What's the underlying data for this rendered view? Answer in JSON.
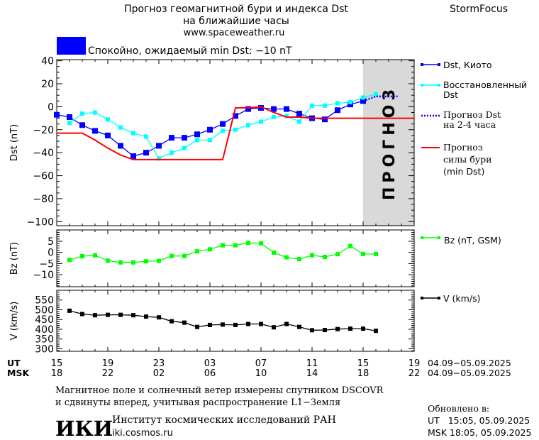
{
  "header": {
    "title_line1": "Прогноз геомагнитной бури и индекса Dst",
    "title_line2": "на ближайшие часы",
    "url": "www.spaceweather.ru",
    "brand": "StormFocus",
    "status_text": "Спокойно, ожидаемый min Dst: −10 nT",
    "status_color": "#0000ff"
  },
  "forecast_watermark": "ПРОГНОЗ",
  "legend": {
    "dst_kyoto": "Dst, Киото",
    "restored_1": "Восстановленный",
    "restored_2": "Dst",
    "forecast_1": "Прогноз Dst",
    "forecast_2": "на 2-4 часа",
    "storm_1": "Прогноз",
    "storm_2": "силы бури",
    "storm_3": "(min Dst)",
    "bz": "Bz (nT, GSM)",
    "v": "V (km/s)"
  },
  "time_axis": {
    "ut_label": "UT",
    "msk_label": "MSK",
    "ut_ticks": [
      "15",
      "19",
      "23",
      "03",
      "07",
      "11",
      "15",
      "19"
    ],
    "msk_ticks": [
      "18",
      "22",
      "02",
      "06",
      "10",
      "14",
      "18",
      "22"
    ],
    "ut_range": "04.09−05.09.2025",
    "msk_range": "04.09−05.09.2025"
  },
  "footer": {
    "note_line1": "Магнитное поле и солнечный ветер измерены спутником DSCOVR",
    "note_line2": "и сдвинуты вперед, учитывая распространение L1−Земля",
    "updated_label": "Обновлено в:",
    "updated_ut": "UT   15:05, 05.09.2025",
    "updated_msk": "MSK 18:05, 05.09.2025",
    "logo": "ИКИ",
    "institute": "Институт космических исследований РАН",
    "institute_url": "iki.cosmos.ru"
  },
  "chart_data": [
    {
      "type": "line",
      "ylabel": "Dst (nT)",
      "ylim": [
        -103.5,
        41
      ],
      "yticks": [
        40,
        20,
        0,
        -20,
        -40,
        -60,
        -80,
        -100
      ],
      "x_unit": "hours since 15 UT 04.09.2025",
      "xlim": [
        0,
        28
      ],
      "forecast_region": [
        24,
        28
      ],
      "series": [
        {
          "name": "Dst, Киото",
          "color": "#0000ff",
          "marker": "square",
          "x": [
            0,
            1,
            2,
            3,
            4,
            5,
            6,
            7,
            8,
            9,
            10,
            11,
            12,
            13,
            14,
            15,
            16,
            17,
            18,
            19,
            20,
            21,
            22,
            23,
            24
          ],
          "values": [
            -7,
            -9,
            -16,
            -21,
            -25,
            -34,
            -43,
            -40,
            -34,
            -27,
            -27,
            -24,
            -20,
            -15,
            -8,
            -2,
            -1,
            -2,
            -2,
            -6,
            -10,
            -11,
            -3,
            2,
            5
          ]
        },
        {
          "name": "Восстановленный Dst",
          "color": "#00ffff",
          "marker": "square",
          "x": [
            1,
            2,
            3,
            4,
            5,
            6,
            7,
            8,
            9,
            10,
            11,
            12,
            13,
            14,
            15,
            16,
            17,
            18,
            19,
            20,
            21,
            22,
            23,
            24,
            25
          ],
          "values": [
            -14,
            -6,
            -5,
            -11,
            -18,
            -23,
            -26,
            -45,
            -40,
            -36,
            -29,
            -29,
            -21,
            -20,
            -16,
            -13,
            -9,
            -8,
            -13,
            1,
            1,
            3,
            4,
            8,
            11
          ]
        },
        {
          "name": "Прогноз Dst на 2-4 часа",
          "color": "#0000ff",
          "style": "dotted",
          "x": [
            24,
            25,
            26.7
          ],
          "values": [
            5,
            9,
            9
          ]
        },
        {
          "name": "Прогноз силы бури (min Dst)",
          "color": "#ff0000",
          "x": [
            0,
            2,
            3,
            4,
            5,
            6,
            13,
            14,
            15,
            16,
            17,
            18,
            19,
            20,
            28
          ],
          "values": [
            -23,
            -23,
            -29,
            -36,
            -42,
            -46,
            -46,
            -1,
            -1,
            0,
            -5,
            -9,
            -9,
            -10,
            -10
          ]
        }
      ]
    },
    {
      "type": "line",
      "ylabel": "Bz (nT)",
      "ylim": [
        -15.4,
        10.1
      ],
      "yticks": [
        5,
        0,
        -5,
        -10
      ],
      "xlim": [
        0,
        28
      ],
      "series": [
        {
          "name": "Bz (nT, GSM)",
          "color": "#00ff00",
          "marker": "square",
          "x": [
            1,
            2,
            3,
            4,
            5,
            6,
            7,
            8,
            9,
            10,
            11,
            12,
            13,
            14,
            15,
            16,
            17,
            18,
            19,
            20,
            21,
            22,
            23,
            24,
            25
          ],
          "values": [
            -3.4,
            -1.7,
            -1.3,
            -3.7,
            -4.5,
            -4.5,
            -4,
            -3.8,
            -1.6,
            -1.6,
            0.5,
            1.4,
            3.2,
            3.2,
            4.3,
            4.1,
            -0.1,
            -2.2,
            -3,
            -1.3,
            -2,
            -0.8,
            2.9,
            -0.7,
            -0.7
          ]
        }
      ]
    },
    {
      "type": "line",
      "ylabel": "V (km/s)",
      "ylim": [
        287,
        600
      ],
      "yticks": [
        550,
        500,
        450,
        400,
        350,
        300
      ],
      "xlim": [
        0,
        28
      ],
      "series": [
        {
          "name": "V (km/s)",
          "color": "#000000",
          "marker": "square",
          "x": [
            1,
            2,
            3,
            4,
            5,
            6,
            7,
            8,
            9,
            10,
            11,
            12,
            13,
            14,
            15,
            16,
            17,
            18,
            19,
            20,
            21,
            22,
            23,
            24,
            25
          ],
          "values": [
            495,
            478,
            472,
            474,
            474,
            472,
            465,
            461,
            441,
            434,
            412,
            422,
            424,
            422,
            427,
            427,
            410,
            427,
            412,
            395,
            396,
            401,
            403,
            403,
            392
          ]
        }
      ]
    }
  ]
}
